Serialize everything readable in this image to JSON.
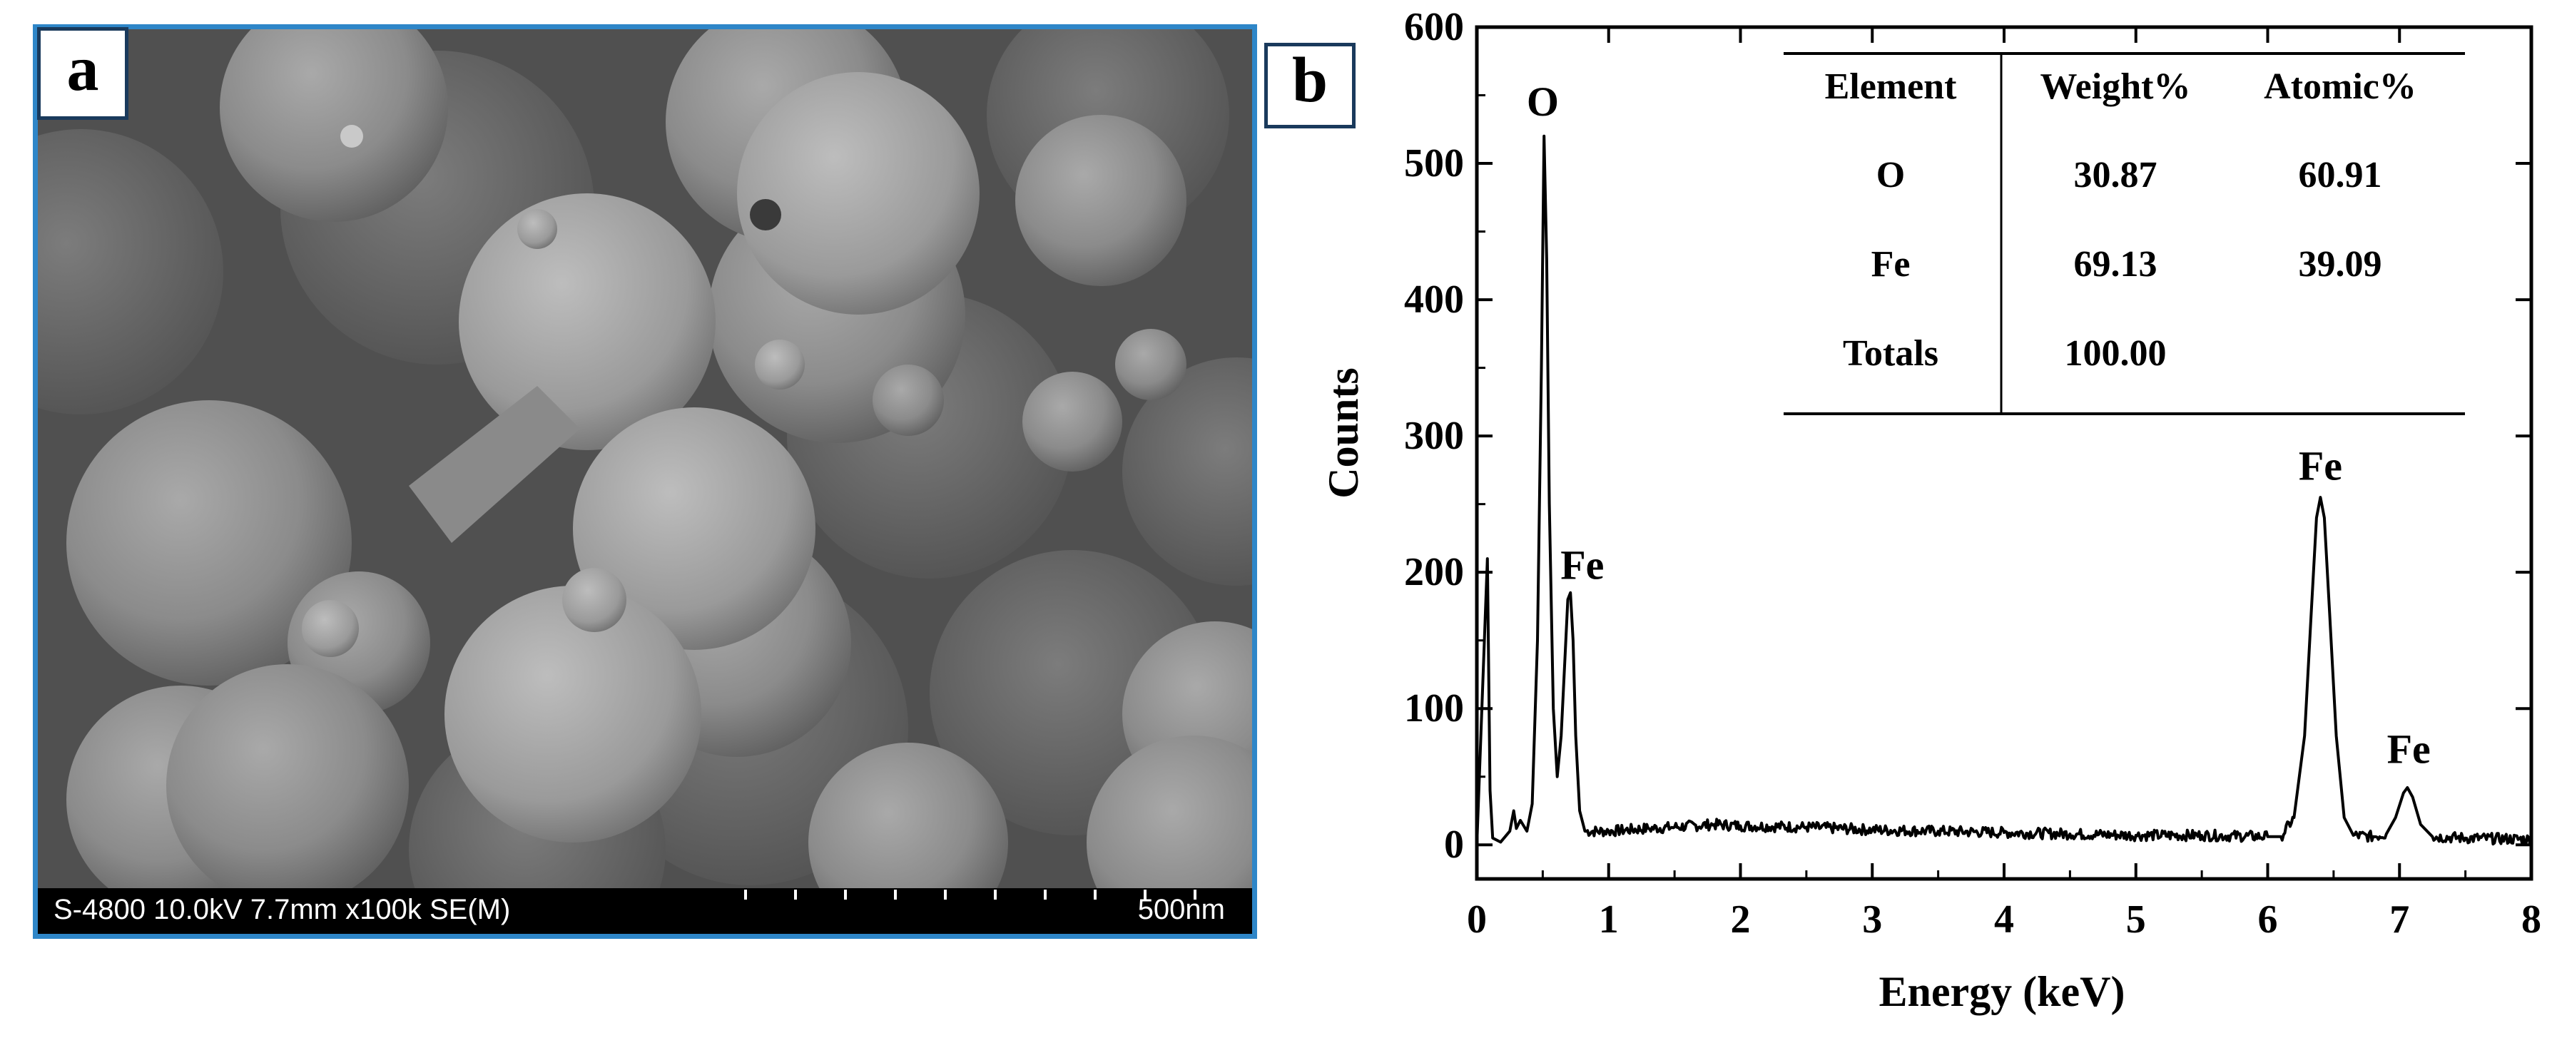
{
  "panel_a": {
    "label": "a",
    "info_text": "S-4800 10.0kV 7.7mm x100k SE(M)",
    "scale_label": "500nm"
  },
  "panel_b": {
    "label": "b"
  },
  "chart_data": {
    "type": "line",
    "xlabel": "Energy (keV)",
    "ylabel": "Counts",
    "xlim": [
      0,
      8
    ],
    "ylim": [
      -25,
      600
    ],
    "xticks": [
      0,
      1,
      2,
      3,
      4,
      5,
      6,
      7,
      8
    ],
    "yticks": [
      0,
      100,
      200,
      300,
      400,
      500,
      600
    ],
    "grid": false,
    "series": [
      {
        "points": [
          [
            0.0,
            0
          ],
          [
            0.08,
            210
          ],
          [
            0.1,
            40
          ],
          [
            0.12,
            5
          ],
          [
            0.18,
            2
          ],
          [
            0.25,
            10
          ],
          [
            0.28,
            25
          ],
          [
            0.3,
            12
          ],
          [
            0.33,
            18
          ],
          [
            0.38,
            10
          ],
          [
            0.42,
            30
          ],
          [
            0.46,
            150
          ],
          [
            0.49,
            350
          ],
          [
            0.51,
            520
          ],
          [
            0.53,
            430
          ],
          [
            0.55,
            250
          ],
          [
            0.58,
            100
          ],
          [
            0.61,
            50
          ],
          [
            0.64,
            80
          ],
          [
            0.67,
            140
          ],
          [
            0.69,
            180
          ],
          [
            0.71,
            185
          ],
          [
            0.73,
            150
          ],
          [
            0.75,
            80
          ],
          [
            0.78,
            25
          ],
          [
            0.82,
            10
          ],
          [
            1.0,
            10
          ],
          [
            1.3,
            12
          ],
          [
            1.5,
            13
          ],
          [
            1.8,
            15
          ],
          [
            2.0,
            14
          ],
          [
            2.5,
            13
          ],
          [
            3.0,
            11
          ],
          [
            3.5,
            10
          ],
          [
            4.0,
            9
          ],
          [
            4.5,
            8
          ],
          [
            5.0,
            7
          ],
          [
            5.5,
            7
          ],
          [
            6.0,
            6
          ],
          [
            6.1,
            6
          ],
          [
            6.2,
            20
          ],
          [
            6.28,
            80
          ],
          [
            6.33,
            170
          ],
          [
            6.37,
            240
          ],
          [
            6.4,
            255
          ],
          [
            6.43,
            240
          ],
          [
            6.47,
            170
          ],
          [
            6.52,
            80
          ],
          [
            6.58,
            20
          ],
          [
            6.65,
            7
          ],
          [
            6.8,
            6
          ],
          [
            6.9,
            8
          ],
          [
            6.97,
            20
          ],
          [
            7.03,
            38
          ],
          [
            7.06,
            42
          ],
          [
            7.1,
            35
          ],
          [
            7.16,
            15
          ],
          [
            7.25,
            6
          ],
          [
            7.5,
            5
          ],
          [
            8.0,
            4
          ]
        ]
      }
    ],
    "annotations": [
      {
        "text": "O",
        "x": 0.5,
        "y": 535
      },
      {
        "text": "Fe",
        "x": 0.8,
        "y": 195
      },
      {
        "text": "Fe",
        "x": 6.4,
        "y": 268
      },
      {
        "text": "Fe",
        "x": 7.07,
        "y": 60
      }
    ],
    "table": {
      "headers": [
        "Element",
        "Weight%",
        "Atomic%"
      ],
      "rows": [
        [
          "O",
          "30.87",
          "60.91"
        ],
        [
          "Fe",
          "69.13",
          "39.09"
        ],
        [
          "Totals",
          "100.00",
          ""
        ]
      ]
    }
  }
}
